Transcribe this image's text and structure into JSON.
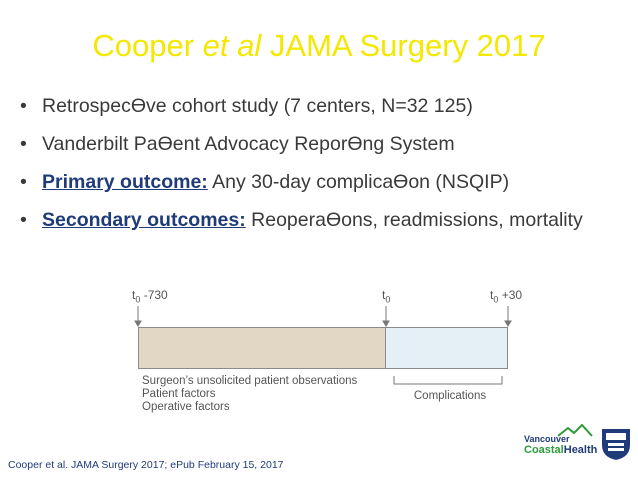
{
  "title": {
    "pre": "Cooper ",
    "italic": "et al",
    "post": " JAMA Surgery 2017"
  },
  "bullets": [
    {
      "label": "",
      "text": "RetrospecƟve cohort study (7 centers, N=32 125)"
    },
    {
      "label": "",
      "text": "Vanderbilt PaƟent Advocacy ReporƟng System"
    },
    {
      "label": "Primary outcome:",
      "text": " Any 30-day complicaƟon (NSQIP)"
    },
    {
      "label": "Secondary outcomes:",
      "text": " ReoperaƟons, readmissions, mortality"
    }
  ],
  "timeline": {
    "marker_start": {
      "t": "t",
      "sub": "0",
      "offset": " -730"
    },
    "marker_mid": {
      "t": "t",
      "sub": "0",
      "offset": ""
    },
    "marker_end": {
      "t": "t",
      "sub": "0",
      "offset": " +30"
    },
    "factors": [
      "Surgeon’s unsolicited patient observations",
      "Patient factors",
      "Operative factors"
    ],
    "complications_label": "Complications",
    "pre_color": "#e2d6c4",
    "post_color": "#e4f0f6"
  },
  "citation": "Cooper et al. JAMA Surgery 2017; ePub February 15, 2017",
  "logos": {
    "vch_line1": "Vancouver",
    "vch_coastal": "Coastal",
    "vch_health": "Health",
    "ubc_mark": "shield-crest"
  }
}
